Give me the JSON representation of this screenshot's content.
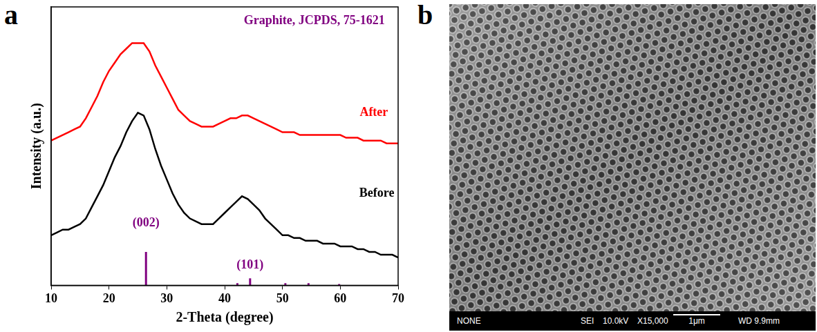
{
  "chart_data": {
    "type": "line",
    "panel_label": "a",
    "x_label": "2-Theta (degree)",
    "y_label": "Intensity (a.u.)",
    "xlim": [
      10,
      70
    ],
    "xticks": [
      10,
      20,
      30,
      40,
      50,
      60,
      70
    ],
    "ylim": [
      0,
      100
    ],
    "tick_labels": "x",
    "grid": false,
    "x": [
      10,
      11,
      12,
      13,
      14,
      15,
      16,
      17,
      18,
      19,
      20,
      21,
      22,
      23,
      24,
      25,
      26,
      27,
      28,
      29,
      30,
      31,
      32,
      33,
      34,
      35,
      36,
      37,
      38,
      39,
      40,
      41,
      42,
      43,
      44,
      45,
      46,
      47,
      48,
      49,
      50,
      51,
      52,
      53,
      54,
      55,
      56,
      57,
      58,
      59,
      60,
      61,
      62,
      63,
      64,
      65,
      66,
      67,
      68,
      69,
      70
    ],
    "series": [
      {
        "name": "Before",
        "color": "#000000",
        "label_x": 66.3,
        "label_y": 33,
        "values": [
          18,
          19,
          20,
          20,
          21,
          22,
          24,
          28,
          32,
          36,
          41,
          46,
          50,
          55,
          59,
          62,
          61,
          56,
          49,
          43,
          38,
          33,
          29,
          26,
          24,
          23,
          22,
          22,
          22,
          24,
          26,
          28,
          30,
          32,
          31,
          29,
          27,
          24,
          22,
          20,
          18,
          18,
          17,
          17,
          16,
          16,
          16,
          15,
          15,
          15,
          14,
          14,
          14,
          13,
          13,
          12,
          12,
          11,
          11,
          11,
          10
        ]
      },
      {
        "name": "After",
        "color": "#ff0000",
        "label_x": 65.8,
        "label_y": 62,
        "values": [
          52,
          53,
          54,
          55,
          56,
          57,
          60,
          64,
          68,
          73,
          77,
          80,
          83,
          85,
          87,
          87,
          87,
          84,
          79,
          75,
          71,
          67,
          63,
          61,
          59,
          58,
          57,
          57,
          57,
          58,
          59,
          60,
          60,
          61,
          61,
          60,
          59,
          58,
          57,
          56,
          55,
          55,
          55,
          54,
          54,
          54,
          54,
          54,
          54,
          54,
          54,
          53,
          53,
          53,
          52,
          52,
          52,
          52,
          51,
          51,
          51
        ]
      }
    ],
    "reference": {
      "name": "Graphite, JCPDS, 75-1621",
      "color": "#800080",
      "name_x": 55.5,
      "name_y": 95,
      "x": [
        26.4,
        42.2,
        44.4,
        50.5,
        54.5,
        59.8
      ],
      "values": [
        12,
        0.8,
        2.5,
        0.8,
        0.8,
        0.5
      ],
      "labels": [
        "(002)",
        null,
        "(101)",
        null,
        null,
        null
      ],
      "label_y": [
        20,
        null,
        5,
        null,
        null,
        null
      ]
    }
  },
  "image_panel": {
    "panel_label": "b",
    "info_bar": [
      "NONE",
      "SEI",
      "10.0kV",
      "X15,000",
      "1μm",
      "WD 9.9mm"
    ]
  }
}
